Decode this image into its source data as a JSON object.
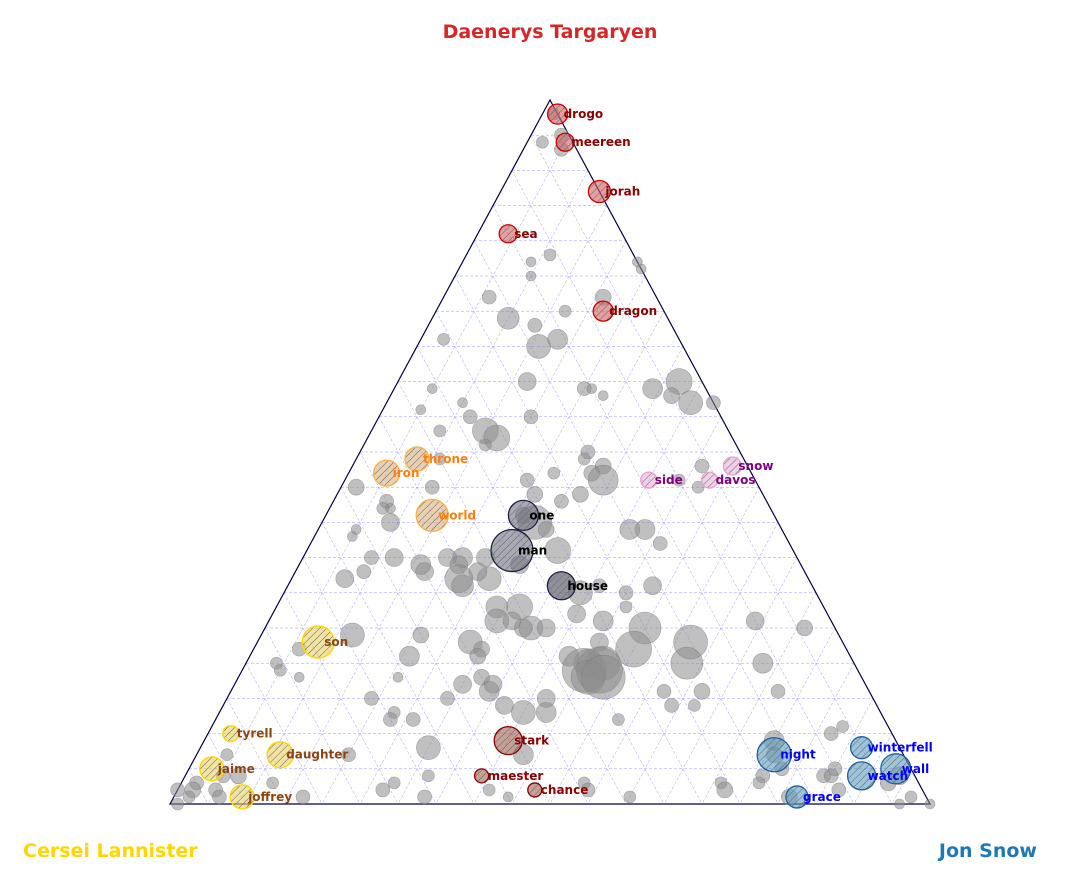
{
  "chart_data": {
    "type": "scatter",
    "subtype": "ternary",
    "vertices": {
      "top": {
        "label": "Daenerys Targaryen",
        "color": "#d62728"
      },
      "left": {
        "label": "Cersei Lannister",
        "color": "#ffd700"
      },
      "right": {
        "label": "Jon Snow",
        "color": "#1f77b4"
      }
    },
    "grid": true,
    "labeled_points": [
      {
        "word": "drogo",
        "top": 0.98,
        "left": 0.0,
        "right": 0.02,
        "group": "daenerys",
        "size": 10
      },
      {
        "word": "meereen",
        "top": 0.94,
        "left": 0.01,
        "right": 0.05,
        "group": "daenerys",
        "size": 9
      },
      {
        "word": "jorah",
        "top": 0.87,
        "left": 0.0,
        "right": 0.13,
        "group": "daenerys",
        "size": 11
      },
      {
        "word": "sea",
        "top": 0.81,
        "left": 0.15,
        "right": 0.04,
        "group": "daenerys",
        "size": 9
      },
      {
        "word": "dragon",
        "top": 0.7,
        "left": 0.08,
        "right": 0.22,
        "group": "daenerys",
        "size": 10
      },
      {
        "word": "stark",
        "top": 0.09,
        "left": 0.51,
        "right": 0.4,
        "group": "stark",
        "size": 14
      },
      {
        "word": "maester",
        "top": 0.04,
        "left": 0.57,
        "right": 0.39,
        "group": "stark",
        "size": 7
      },
      {
        "word": "chance",
        "top": 0.02,
        "left": 0.51,
        "right": 0.47,
        "group": "stark",
        "size": 7
      },
      {
        "word": "throne",
        "top": 0.49,
        "left": 0.43,
        "right": 0.08,
        "group": "lannister_orange",
        "size": 12
      },
      {
        "word": "iron",
        "top": 0.47,
        "left": 0.48,
        "right": 0.05,
        "group": "lannister_orange",
        "size": 13
      },
      {
        "word": "world",
        "top": 0.41,
        "left": 0.45,
        "right": 0.14,
        "group": "lannister_orange",
        "size": 16
      },
      {
        "word": "son",
        "top": 0.23,
        "left": 0.69,
        "right": 0.08,
        "group": "lannister",
        "size": 16
      },
      {
        "word": "tyrell",
        "top": 0.1,
        "left": 0.87,
        "right": 0.03,
        "group": "lannister",
        "size": 8
      },
      {
        "word": "daughter",
        "top": 0.07,
        "left": 0.82,
        "right": 0.11,
        "group": "lannister",
        "size": 13
      },
      {
        "word": "jaime",
        "top": 0.05,
        "left": 0.92,
        "right": 0.03,
        "group": "lannister",
        "size": 12
      },
      {
        "word": "joffrey",
        "top": 0.01,
        "left": 0.9,
        "right": 0.09,
        "group": "lannister",
        "size": 12
      },
      {
        "word": "one",
        "top": 0.41,
        "left": 0.33,
        "right": 0.26,
        "group": "neutral",
        "size": 15
      },
      {
        "word": "man",
        "top": 0.36,
        "left": 0.37,
        "right": 0.27,
        "group": "neutral",
        "size": 21
      },
      {
        "word": "house",
        "top": 0.31,
        "left": 0.33,
        "right": 0.36,
        "group": "neutral",
        "size": 14
      },
      {
        "word": "side",
        "top": 0.46,
        "left": 0.14,
        "right": 0.4,
        "group": "davos",
        "size": 8
      },
      {
        "word": "snow",
        "top": 0.48,
        "left": 0.02,
        "right": 0.5,
        "group": "davos",
        "size": 9
      },
      {
        "word": "davos",
        "top": 0.46,
        "left": 0.06,
        "right": 0.48,
        "group": "davos",
        "size": 8
      },
      {
        "word": "night",
        "top": 0.07,
        "left": 0.17,
        "right": 0.76,
        "group": "jon",
        "size": 17
      },
      {
        "word": "winterfell",
        "top": 0.08,
        "left": 0.05,
        "right": 0.87,
        "group": "jon",
        "size": 11
      },
      {
        "word": "wall",
        "top": 0.05,
        "left": 0.02,
        "right": 0.93,
        "group": "jon",
        "size": 15
      },
      {
        "word": "watch",
        "top": 0.04,
        "left": 0.07,
        "right": 0.89,
        "group": "jon",
        "size": 14
      },
      {
        "word": "grace",
        "top": 0.01,
        "left": 0.17,
        "right": 0.82,
        "group": "jon",
        "size": 11
      }
    ],
    "background_points": [
      [
        0.98,
        0.005,
        0.015,
        6
      ],
      [
        0.95,
        0.01,
        0.04,
        7
      ],
      [
        0.94,
        0.04,
        0.02,
        6
      ],
      [
        0.93,
        0.02,
        0.05,
        7
      ],
      [
        0.77,
        0.14,
        0.09,
        5
      ],
      [
        0.78,
        0.11,
        0.11,
        6
      ],
      [
        0.75,
        0.15,
        0.1,
        5
      ],
      [
        0.76,
        0.0,
        0.24,
        5
      ],
      [
        0.77,
        0.0,
        0.23,
        5
      ],
      [
        0.72,
        0.22,
        0.06,
        7
      ],
      [
        0.69,
        0.21,
        0.1,
        11
      ],
      [
        0.68,
        0.18,
        0.14,
        7
      ],
      [
        0.7,
        0.13,
        0.17,
        6
      ],
      [
        0.72,
        0.07,
        0.21,
        8
      ],
      [
        0.66,
        0.16,
        0.18,
        10
      ],
      [
        0.65,
        0.19,
        0.16,
        12
      ],
      [
        0.66,
        0.31,
        0.03,
        6
      ],
      [
        0.59,
        0.36,
        0.05,
        5
      ],
      [
        0.57,
        0.33,
        0.1,
        5
      ],
      [
        0.6,
        0.23,
        0.17,
        9
      ],
      [
        0.59,
        0.16,
        0.25,
        7
      ],
      [
        0.59,
        0.15,
        0.26,
        5
      ],
      [
        0.58,
        0.14,
        0.28,
        5
      ],
      [
        0.59,
        0.07,
        0.34,
        10
      ],
      [
        0.6,
        0.03,
        0.37,
        13
      ],
      [
        0.57,
        0.03,
        0.4,
        12
      ],
      [
        0.58,
        0.05,
        0.37,
        8
      ],
      [
        0.57,
        0.0,
        0.43,
        7
      ],
      [
        0.55,
        0.33,
        0.12,
        7
      ],
      [
        0.55,
        0.25,
        0.2,
        7
      ],
      [
        0.53,
        0.38,
        0.09,
        6
      ],
      [
        0.56,
        0.39,
        0.05,
        5
      ],
      [
        0.53,
        0.32,
        0.15,
        13
      ],
      [
        0.52,
        0.31,
        0.17,
        13
      ],
      [
        0.51,
        0.33,
        0.16,
        6
      ],
      [
        0.49,
        0.4,
        0.11,
        6
      ],
      [
        0.5,
        0.2,
        0.3,
        7
      ],
      [
        0.48,
        0.19,
        0.33,
        8
      ],
      [
        0.49,
        0.21,
        0.3,
        6
      ],
      [
        0.47,
        0.21,
        0.32,
        8
      ],
      [
        0.46,
        0.2,
        0.34,
        15
      ],
      [
        0.48,
        0.06,
        0.46,
        7
      ],
      [
        0.46,
        0.1,
        0.44,
        6
      ],
      [
        0.45,
        0.08,
        0.47,
        6
      ],
      [
        0.45,
        0.43,
        0.12,
        7
      ],
      [
        0.46,
        0.3,
        0.24,
        7
      ],
      [
        0.47,
        0.26,
        0.27,
        6
      ],
      [
        0.44,
        0.3,
        0.26,
        8
      ],
      [
        0.44,
        0.24,
        0.32,
        8
      ],
      [
        0.43,
        0.27,
        0.3,
        7
      ],
      [
        0.45,
        0.53,
        0.02,
        8
      ],
      [
        0.43,
        0.5,
        0.07,
        7
      ],
      [
        0.42,
        0.5,
        0.08,
        5
      ],
      [
        0.41,
        0.33,
        0.26,
        8
      ],
      [
        0.42,
        0.51,
        0.07,
        6
      ],
      [
        0.39,
        0.56,
        0.05,
        5
      ],
      [
        0.4,
        0.51,
        0.09,
        9
      ],
      [
        0.38,
        0.57,
        0.05,
        5
      ],
      [
        0.4,
        0.32,
        0.28,
        17
      ],
      [
        0.39,
        0.31,
        0.3,
        8
      ],
      [
        0.39,
        0.18,
        0.43,
        10
      ],
      [
        0.39,
        0.2,
        0.41,
        10
      ],
      [
        0.37,
        0.17,
        0.46,
        7
      ],
      [
        0.35,
        0.41,
        0.24,
        9
      ],
      [
        0.35,
        0.56,
        0.09,
        7
      ],
      [
        0.35,
        0.53,
        0.12,
        9
      ],
      [
        0.34,
        0.5,
        0.16,
        10
      ],
      [
        0.34,
        0.45,
        0.21,
        9
      ],
      [
        0.35,
        0.44,
        0.21,
        10
      ],
      [
        0.35,
        0.46,
        0.19,
        9
      ],
      [
        0.36,
        0.31,
        0.33,
        13
      ],
      [
        0.34,
        0.37,
        0.29,
        9
      ],
      [
        0.33,
        0.5,
        0.17,
        9
      ],
      [
        0.32,
        0.42,
        0.26,
        12
      ],
      [
        0.33,
        0.43,
        0.24,
        9
      ],
      [
        0.32,
        0.46,
        0.22,
        14
      ],
      [
        0.31,
        0.46,
        0.23,
        11
      ],
      [
        0.33,
        0.58,
        0.09,
        7
      ],
      [
        0.32,
        0.61,
        0.07,
        9
      ],
      [
        0.31,
        0.33,
        0.36,
        14
      ],
      [
        0.3,
        0.31,
        0.39,
        12
      ],
      [
        0.31,
        0.28,
        0.41,
        7
      ],
      [
        0.3,
        0.25,
        0.45,
        7
      ],
      [
        0.31,
        0.21,
        0.48,
        9
      ],
      [
        0.28,
        0.26,
        0.46,
        6
      ],
      [
        0.27,
        0.33,
        0.4,
        9
      ],
      [
        0.28,
        0.4,
        0.32,
        13
      ],
      [
        0.28,
        0.43,
        0.29,
        11
      ],
      [
        0.26,
        0.44,
        0.3,
        12
      ],
      [
        0.26,
        0.42,
        0.32,
        9
      ],
      [
        0.25,
        0.41,
        0.34,
        9
      ],
      [
        0.25,
        0.4,
        0.35,
        12
      ],
      [
        0.25,
        0.38,
        0.37,
        9
      ],
      [
        0.26,
        0.3,
        0.44,
        10
      ],
      [
        0.25,
        0.25,
        0.5,
        16
      ],
      [
        0.23,
        0.2,
        0.57,
        17
      ],
      [
        0.26,
        0.1,
        0.64,
        9
      ],
      [
        0.25,
        0.04,
        0.71,
        8
      ],
      [
        0.24,
        0.64,
        0.12,
        12
      ],
      [
        0.23,
        0.49,
        0.28,
        12
      ],
      [
        0.24,
        0.55,
        0.21,
        8
      ],
      [
        0.22,
        0.48,
        0.3,
        8
      ],
      [
        0.21,
        0.49,
        0.3,
        8
      ],
      [
        0.22,
        0.28,
        0.5,
        18
      ],
      [
        0.23,
        0.32,
        0.45,
        9
      ],
      [
        0.21,
        0.37,
        0.42,
        10
      ],
      [
        0.21,
        0.58,
        0.21,
        10
      ],
      [
        0.22,
        0.72,
        0.06,
        7
      ],
      [
        0.2,
        0.76,
        0.04,
        6
      ],
      [
        0.2,
        0.35,
        0.45,
        14
      ],
      [
        0.2,
        0.33,
        0.47,
        17
      ],
      [
        0.19,
        0.36,
        0.45,
        22
      ],
      [
        0.19,
        0.34,
        0.47,
        23
      ],
      [
        0.18,
        0.36,
        0.46,
        17
      ],
      [
        0.18,
        0.34,
        0.48,
        22
      ],
      [
        0.2,
        0.22,
        0.58,
        16
      ],
      [
        0.2,
        0.12,
        0.68,
        10
      ],
      [
        0.19,
        0.76,
        0.05,
        6
      ],
      [
        0.18,
        0.74,
        0.08,
        5
      ],
      [
        0.18,
        0.61,
        0.21,
        5
      ],
      [
        0.18,
        0.5,
        0.32,
        8
      ],
      [
        0.17,
        0.53,
        0.3,
        9
      ],
      [
        0.17,
        0.49,
        0.34,
        9
      ],
      [
        0.16,
        0.5,
        0.34,
        10
      ],
      [
        0.16,
        0.22,
        0.62,
        8
      ],
      [
        0.15,
        0.43,
        0.42,
        9
      ],
      [
        0.16,
        0.27,
        0.57,
        7
      ],
      [
        0.16,
        0.12,
        0.72,
        7
      ],
      [
        0.14,
        0.27,
        0.59,
        7
      ],
      [
        0.14,
        0.24,
        0.62,
        6
      ],
      [
        0.14,
        0.49,
        0.37,
        9
      ],
      [
        0.13,
        0.47,
        0.4,
        12
      ],
      [
        0.13,
        0.44,
        0.43,
        10
      ],
      [
        0.13,
        0.64,
        0.23,
        6
      ],
      [
        0.12,
        0.62,
        0.26,
        7
      ],
      [
        0.12,
        0.35,
        0.53,
        6
      ],
      [
        0.15,
        0.56,
        0.29,
        7
      ],
      [
        0.15,
        0.66,
        0.19,
        7
      ],
      [
        0.12,
        0.65,
        0.23,
        7
      ],
      [
        0.1,
        0.08,
        0.82,
        7
      ],
      [
        0.11,
        0.06,
        0.83,
        6
      ],
      [
        0.09,
        0.16,
        0.75,
        10
      ],
      [
        0.08,
        0.62,
        0.3,
        12
      ],
      [
        0.07,
        0.73,
        0.2,
        7
      ],
      [
        0.07,
        0.5,
        0.43,
        10
      ],
      [
        0.07,
        0.17,
        0.76,
        8
      ],
      [
        0.07,
        0.89,
        0.04,
        6
      ],
      [
        0.05,
        0.17,
        0.78,
        7
      ],
      [
        0.05,
        0.1,
        0.85,
        7
      ],
      [
        0.04,
        0.64,
        0.32,
        6
      ],
      [
        0.04,
        0.91,
        0.05,
        7
      ],
      [
        0.04,
        0.89,
        0.07,
        8
      ],
      [
        0.04,
        0.2,
        0.76,
        7
      ],
      [
        0.04,
        0.12,
        0.84,
        7
      ],
      [
        0.04,
        0.11,
        0.85,
        7
      ],
      [
        0.04,
        0.02,
        0.94,
        9
      ],
      [
        0.03,
        0.95,
        0.02,
        7
      ],
      [
        0.03,
        0.85,
        0.12,
        6
      ],
      [
        0.03,
        0.69,
        0.28,
        6
      ],
      [
        0.03,
        0.44,
        0.53,
        6
      ],
      [
        0.03,
        0.26,
        0.71,
        6
      ],
      [
        0.03,
        0.21,
        0.76,
        6
      ],
      [
        0.03,
        0.04,
        0.93,
        8
      ],
      [
        0.02,
        0.98,
        0.0,
        7
      ],
      [
        0.02,
        0.96,
        0.02,
        8
      ],
      [
        0.02,
        0.93,
        0.05,
        7
      ],
      [
        0.02,
        0.71,
        0.27,
        7
      ],
      [
        0.02,
        0.57,
        0.41,
        6
      ],
      [
        0.02,
        0.44,
        0.54,
        7
      ],
      [
        0.02,
        0.26,
        0.72,
        8
      ],
      [
        0.02,
        0.11,
        0.87,
        7
      ],
      [
        0.01,
        0.97,
        0.02,
        6
      ],
      [
        0.01,
        0.93,
        0.06,
        7
      ],
      [
        0.01,
        0.82,
        0.17,
        7
      ],
      [
        0.01,
        0.66,
        0.33,
        7
      ],
      [
        0.01,
        0.55,
        0.44,
        5
      ],
      [
        0.01,
        0.39,
        0.6,
        6
      ],
      [
        0.01,
        0.18,
        0.81,
        8
      ],
      [
        0.01,
        0.02,
        0.97,
        6
      ],
      [
        0.0,
        0.99,
        0.01,
        6
      ],
      [
        0.0,
        0.04,
        0.96,
        5
      ],
      [
        0.0,
        0.0,
        1.0,
        5
      ]
    ]
  },
  "colors": {
    "daenerys": "#d62728",
    "lannister": "#ffd700",
    "jon": "#1f77b4",
    "labels": {
      "daenerys": "#8b0000",
      "stark": "#8b0000",
      "lannister_orange": "#ff7f0e",
      "lannister": "#8b4513",
      "neutral": "#000000",
      "davos": "#800080",
      "jon": "#0000ff"
    }
  }
}
